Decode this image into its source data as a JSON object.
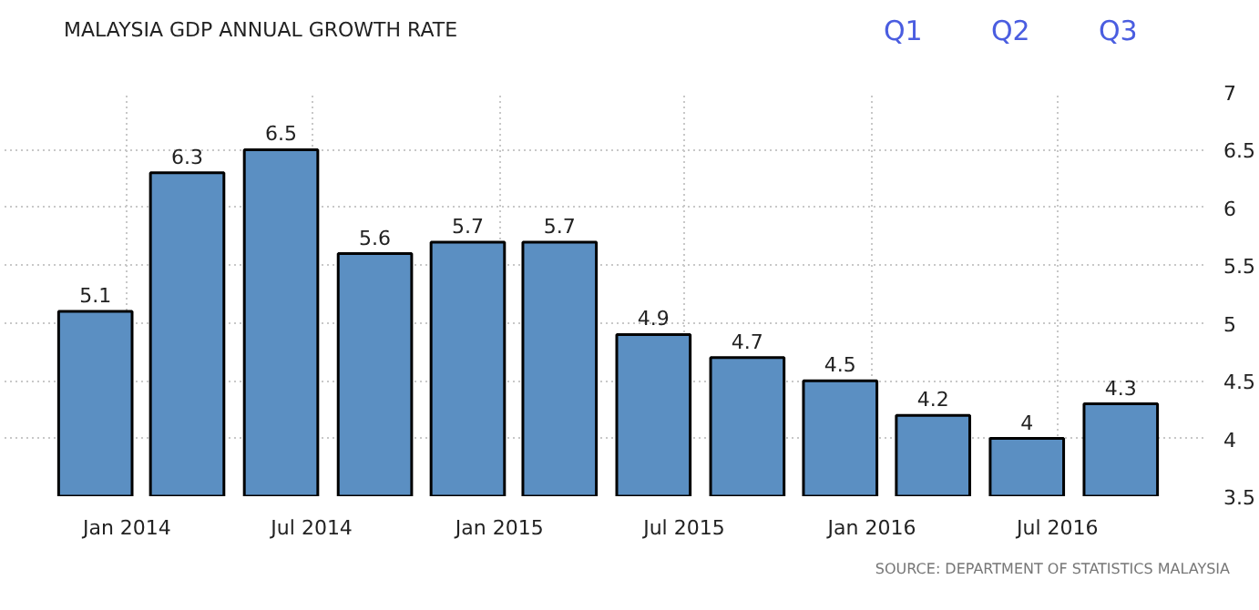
{
  "chart_data": {
    "type": "bar",
    "title": "MALAYSIA GDP ANNUAL GROWTH RATE",
    "x": [
      "2013-12",
      "2014-03",
      "2014-06",
      "2014-09",
      "2014-12",
      "2015-03",
      "2015-06",
      "2015-09",
      "2015-12",
      "2016-03",
      "2016-06",
      "2016-09"
    ],
    "values": [
      5.1,
      6.3,
      6.5,
      5.6,
      5.7,
      5.7,
      4.9,
      4.7,
      4.5,
      4.2,
      4,
      4.3
    ],
    "color": "#5b8fc2",
    "data_labels": true,
    "xlim": [
      "2013-09-03",
      "2016-11-21"
    ],
    "xticks": [
      {
        "value": "2014-01-01",
        "label": "Jan 2014"
      },
      {
        "value": "2014-07-01",
        "label": "Jul 2014"
      },
      {
        "value": "2015-01-01",
        "label": "Jan 2015"
      },
      {
        "value": "2015-07-01",
        "label": "Jul 2015"
      },
      {
        "value": "2016-01-01",
        "label": "Jan 2016"
      },
      {
        "value": "2016-07-01",
        "label": "Jul 2016"
      }
    ],
    "ylim": [
      3.5,
      7
    ],
    "yticks": [
      3.5,
      4,
      4.5,
      5,
      5.5,
      6,
      6.5,
      7
    ],
    "grid": true,
    "annotations": [
      "Q1",
      "Q2",
      "Q3",
      "SOURCE: DEPARTMENT OF STATISTICS MALAYSIA"
    ]
  }
}
